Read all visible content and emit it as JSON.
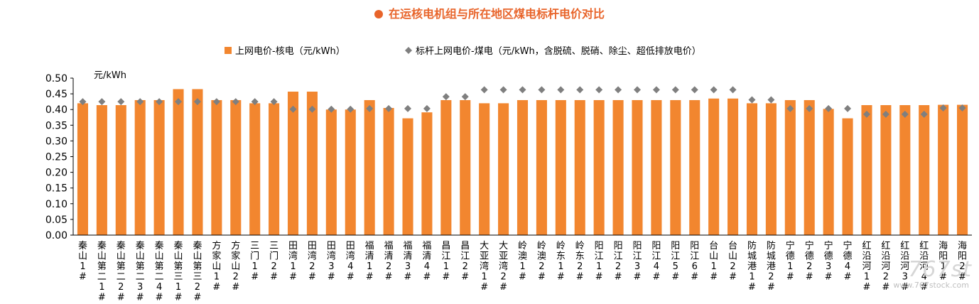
{
  "title": "在运核电机组与所在地区煤电标杆电价对比",
  "watermark": {
    "logo": "767st",
    "url": "www.767stock.com"
  },
  "colors": {
    "bar": "#F2862F",
    "marker": "#7F7F7F",
    "title": "#E8642A"
  },
  "chart_data": {
    "type": "bar",
    "ylabel": "元/kWh",
    "ylim": [
      0,
      0.5
    ],
    "yticks": [
      "0.50",
      "0.45",
      "0.40",
      "0.35",
      "0.30",
      "0.25",
      "0.20",
      "0.15",
      "0.10",
      "0.05",
      "0.00"
    ],
    "legend_position": "top",
    "grid": false,
    "categories": [
      "秦山1#",
      "秦山第二1#",
      "秦山第二2#",
      "秦山第二3#",
      "秦山第二4#",
      "秦山第三1#",
      "秦山第三2#",
      "方家山1#",
      "方家山2#",
      "三门1#",
      "三门2#",
      "田湾1#",
      "田湾2#",
      "田湾3#",
      "田湾4#",
      "福清1#",
      "福清2#",
      "福清3#",
      "福清4#",
      "昌江1#",
      "昌江2#",
      "大亚湾1#",
      "大亚湾2#",
      "岭澳1#",
      "岭澳2#",
      "岭东1#",
      "岭东2#",
      "阳江1#",
      "阳江2#",
      "阳江3#",
      "阳江4#",
      "阳江5#",
      "阳江6#",
      "台山1#",
      "台山2#",
      "防城港1#",
      "防城港2#",
      "宁德1#",
      "宁德2#",
      "宁德3#",
      "宁德4#",
      "红沿河1#",
      "红沿河2#",
      "红沿河3#",
      "红沿河4#",
      "海阳1#",
      "海阳2#"
    ],
    "series": [
      {
        "name": "上网电价-核电（元/kWh）",
        "type": "bar",
        "values": [
          0.42,
          0.414,
          0.414,
          0.43,
          0.43,
          0.465,
          0.465,
          0.43,
          0.43,
          0.42,
          0.42,
          0.457,
          0.457,
          0.4,
          0.4,
          0.43,
          0.405,
          0.372,
          0.391,
          0.43,
          0.43,
          0.42,
          0.42,
          0.43,
          0.43,
          0.43,
          0.43,
          0.43,
          0.43,
          0.43,
          0.43,
          0.43,
          0.43,
          0.435,
          0.435,
          0.42,
          0.42,
          0.43,
          0.43,
          0.402,
          0.372,
          0.414,
          0.414,
          0.414,
          0.414,
          0.415,
          0.415
        ]
      },
      {
        "name": "标杆上网电价-煤电（元/kWh，含脱硫、脱硝、除尘、超低排放电价）",
        "type": "scatter",
        "values": [
          0.425,
          0.425,
          0.425,
          0.425,
          0.425,
          0.425,
          0.425,
          0.425,
          0.425,
          0.425,
          0.425,
          0.401,
          0.401,
          0.401,
          0.401,
          0.403,
          0.403,
          0.403,
          0.403,
          0.441,
          0.441,
          0.463,
          0.463,
          0.463,
          0.463,
          0.463,
          0.463,
          0.463,
          0.463,
          0.463,
          0.463,
          0.463,
          0.463,
          0.463,
          0.463,
          0.431,
          0.431,
          0.403,
          0.403,
          0.403,
          0.403,
          0.385,
          0.385,
          0.385,
          0.385,
          0.405,
          0.405
        ]
      }
    ]
  }
}
